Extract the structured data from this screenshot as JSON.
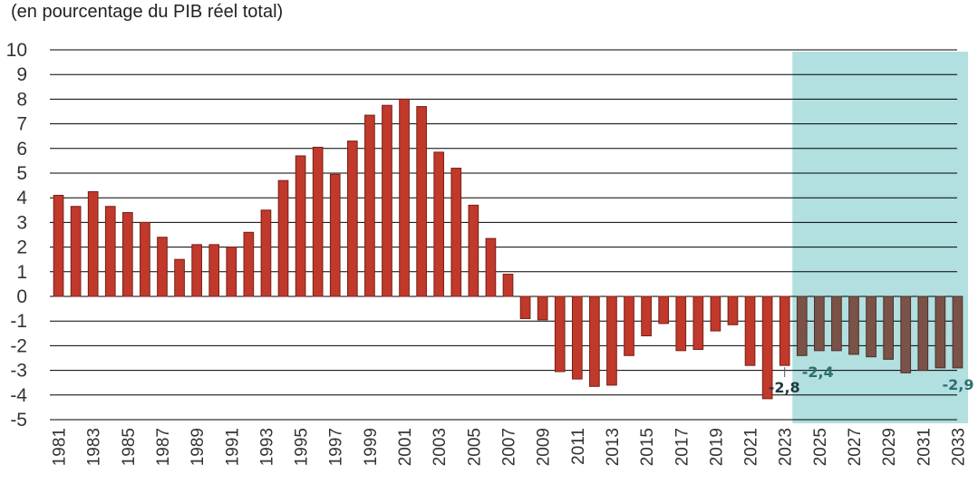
{
  "chart_data": {
    "type": "bar",
    "subtitle": "(en pourcentage du PIB réel total)",
    "x": [
      1981,
      1982,
      1983,
      1984,
      1985,
      1986,
      1987,
      1988,
      1989,
      1990,
      1991,
      1992,
      1993,
      1994,
      1995,
      1996,
      1997,
      1998,
      1999,
      2000,
      2001,
      2002,
      2003,
      2004,
      2005,
      2006,
      2007,
      2008,
      2009,
      2010,
      2011,
      2012,
      2013,
      2014,
      2015,
      2016,
      2017,
      2018,
      2019,
      2020,
      2021,
      2022,
      2023,
      2024,
      2025,
      2026,
      2027,
      2028,
      2029,
      2030,
      2031,
      2032,
      2033
    ],
    "x_tick_labels": [
      "1981",
      "1983",
      "1985",
      "1987",
      "1989",
      "1991",
      "1993",
      "1995",
      "1997",
      "1999",
      "2001",
      "2003",
      "2005",
      "2007",
      "2009",
      "2011",
      "2013",
      "2015",
      "2017",
      "2019",
      "2021",
      "2023",
      "2025",
      "2027",
      "2029",
      "2031",
      "2033"
    ],
    "values": [
      4.1,
      3.65,
      4.25,
      3.65,
      3.4,
      3.0,
      2.4,
      1.5,
      2.1,
      2.1,
      2.0,
      2.6,
      3.5,
      4.7,
      5.7,
      6.05,
      4.95,
      6.3,
      7.35,
      7.75,
      8.0,
      7.7,
      5.85,
      5.2,
      3.7,
      2.35,
      0.9,
      -0.9,
      -0.95,
      -3.05,
      -3.35,
      -3.65,
      -3.6,
      -2.4,
      -1.6,
      -1.1,
      -2.2,
      -2.15,
      -1.4,
      -1.15,
      -2.8,
      -4.15,
      -2.8,
      -2.4,
      -2.2,
      -2.2,
      -2.35,
      -2.45,
      -2.55,
      -3.1,
      -3.0,
      -2.9,
      -2.9
    ],
    "ylim": [
      -5,
      10
    ],
    "yticks": [
      10,
      9,
      8,
      7,
      6,
      5,
      4,
      3,
      2,
      1,
      0,
      -1,
      -2,
      -3,
      -4,
      -5
    ],
    "projection_start": 2024,
    "projection_end": 2033,
    "data_labels": [
      {
        "x": 2023,
        "text": "-2,8"
      },
      {
        "x": 2024,
        "text": "-2,4"
      },
      {
        "x": 2033,
        "text": "-2,9"
      }
    ],
    "grid": true,
    "legend": "none",
    "colors": {
      "historical_bar": "#c0392b",
      "historical_edge": "#7a1f18",
      "projection_bar": "#7b5248",
      "projection_edge": "#4a3029",
      "projection_band": "#b2dfe0",
      "label_dark": "#1f3a40",
      "label_teal": "#2e6e70",
      "gridline": "#000000"
    }
  }
}
